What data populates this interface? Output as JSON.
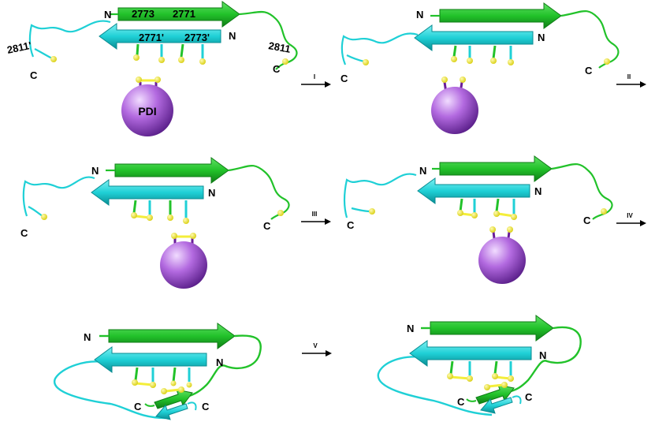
{
  "colors": {
    "green_strand": "#22c22a",
    "green_dark": "#0f7d16",
    "cyan_strand": "#1fd0d6",
    "cyan_dark": "#0a8d93",
    "sulfur": "#f4ee3a",
    "pdi_sphere": "#a45ad6",
    "disulfide_bond": "#6a1d9a",
    "arrow": "#000000"
  },
  "labels": {
    "n": "N",
    "c": "C",
    "res_2773": "2773",
    "res_2771": "2771",
    "res_2771p": "2771'",
    "res_2773p": "2773'",
    "res_2811p": "2811'",
    "res_2811": "2811",
    "pdi": "PDI"
  },
  "steps": [
    "I",
    "II",
    "III",
    "IV",
    "V"
  ],
  "icons": {
    "sphere": "pdi-sphere-icon",
    "arrow": "reaction-arrow-icon"
  }
}
